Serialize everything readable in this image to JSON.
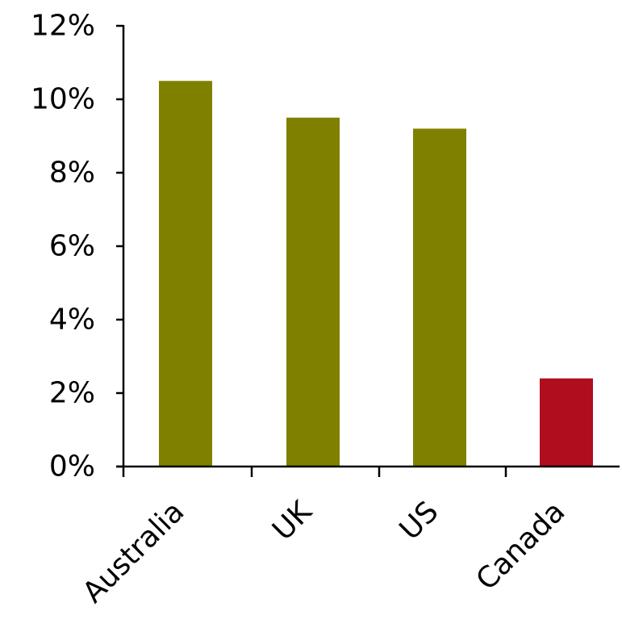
{
  "chart_data": {
    "type": "bar",
    "title": "",
    "xlabel": "",
    "ylabel": "",
    "categories": [
      "Australia",
      "UK",
      "US",
      "Canada"
    ],
    "values": [
      10.5,
      9.5,
      9.2,
      2.4
    ],
    "bar_colors": [
      "#808000",
      "#808000",
      "#808000",
      "#B00D1F"
    ],
    "y_unit": "%",
    "ylim": [
      0,
      12
    ],
    "y_ticks": [
      0,
      2,
      4,
      6,
      8,
      10,
      12
    ],
    "y_tick_labels": [
      "0%",
      "2%",
      "4%",
      "6%",
      "8%",
      "10%",
      "12%"
    ],
    "grid": false,
    "legend": "none",
    "x_label_rotation_deg": -45
  }
}
